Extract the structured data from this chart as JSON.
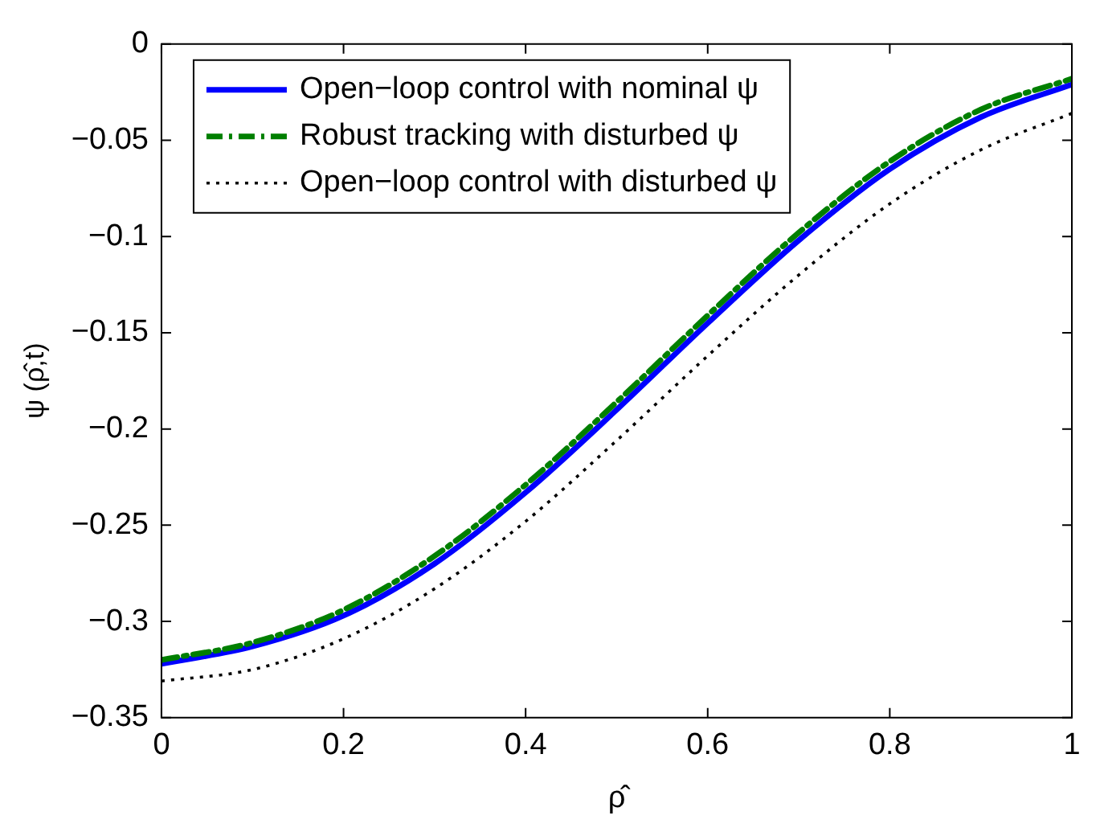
{
  "chart_data": {
    "type": "line",
    "xlabel": "ρ̂",
    "ylabel": "ψ (ρ̂,t)",
    "x": [
      0,
      0.1,
      0.2,
      0.3,
      0.4,
      0.5,
      0.6,
      0.7,
      0.8,
      0.9,
      1.0
    ],
    "series": [
      {
        "name": "Open−loop control with nominal ψ",
        "color": "#0000ff",
        "line_style": "solid",
        "values": [
          -0.322,
          -0.313,
          -0.297,
          -0.27,
          -0.233,
          -0.19,
          -0.145,
          -0.102,
          -0.065,
          -0.038,
          -0.021
        ]
      },
      {
        "name": "Robust tracking with disturbed ψ",
        "color": "#007f00",
        "line_style": "dashdot",
        "values": [
          -0.32,
          -0.311,
          -0.294,
          -0.266,
          -0.229,
          -0.186,
          -0.141,
          -0.098,
          -0.061,
          -0.034,
          -0.018
        ]
      },
      {
        "name": "Open−loop control with disturbed ψ",
        "color": "#000000",
        "line_style": "dotted",
        "values": [
          -0.331,
          -0.325,
          -0.309,
          -0.283,
          -0.248,
          -0.206,
          -0.162,
          -0.12,
          -0.083,
          -0.055,
          -0.036
        ]
      }
    ],
    "xlim": [
      0,
      1
    ],
    "xticks": [
      0,
      0.2,
      0.4,
      0.6,
      0.8,
      1
    ],
    "ylim": [
      -0.35,
      0
    ],
    "yticks": [
      -0.35,
      -0.3,
      -0.25,
      -0.2,
      -0.15,
      -0.1,
      -0.05,
      0
    ],
    "grid": false,
    "legend": "top left",
    "marker": "none"
  }
}
